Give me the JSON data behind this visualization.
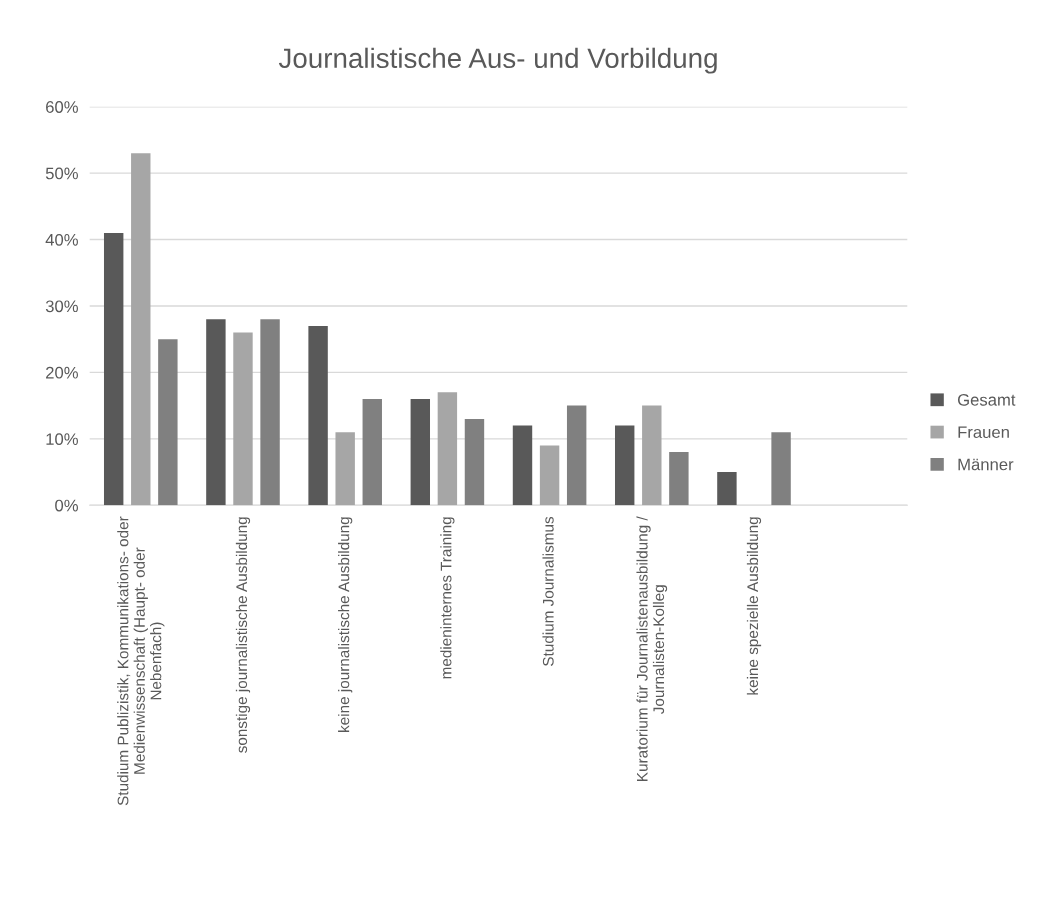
{
  "chart_data": {
    "type": "bar",
    "title": "Journalistische Aus- und Vorbildung",
    "categories": [
      "Studium Publizistik, Kommunikations- oder Medienwissenschaft (Haupt- oder Nebenfach)",
      "sonstige journalistische Ausbildung",
      "keine journalistische Ausbildung",
      "medieninternes Training",
      "Studium Journalismus",
      "Kuratorium für Journalistenausbildung / Journalisten-Kolleg",
      "keine spezielle Ausbildung",
      null
    ],
    "series": [
      {
        "name": "Gesamt",
        "color": "#595959",
        "values": [
          41,
          28,
          27,
          16,
          12,
          12,
          5,
          null
        ]
      },
      {
        "name": "Frauen",
        "color": "#a6a6a6",
        "values": [
          53,
          26,
          11,
          17,
          9,
          15,
          null,
          null
        ]
      },
      {
        "name": "Männer",
        "color": "#808080",
        "values": [
          25,
          28,
          16,
          13,
          15,
          8,
          11,
          null
        ]
      }
    ],
    "ylim": [
      0,
      60
    ],
    "yticks": [
      {
        "value": 0,
        "label": "0%"
      },
      {
        "value": 10,
        "label": "10%"
      },
      {
        "value": 20,
        "label": "20%"
      },
      {
        "value": 30,
        "label": "30%"
      },
      {
        "value": 40,
        "label": "40%"
      },
      {
        "value": 50,
        "label": "50%"
      },
      {
        "value": 60,
        "label": "60%"
      }
    ],
    "grid": "y",
    "legend": "right"
  }
}
